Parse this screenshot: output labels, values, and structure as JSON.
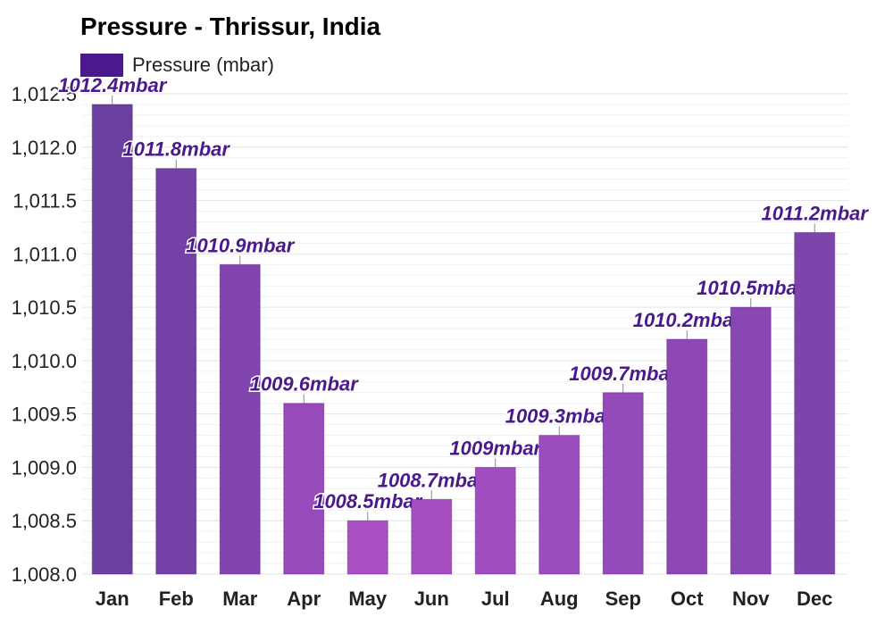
{
  "chart_data": {
    "type": "bar",
    "title": "Pressure - Thrissur, India",
    "legend": {
      "label": "Pressure (mbar)",
      "color": "#4a1a8c",
      "placement": "top-left"
    },
    "categories": [
      "Jan",
      "Feb",
      "Mar",
      "Apr",
      "May",
      "Jun",
      "Jul",
      "Aug",
      "Sep",
      "Oct",
      "Nov",
      "Dec"
    ],
    "values": [
      1012.4,
      1011.8,
      1010.9,
      1009.6,
      1008.5,
      1008.7,
      1009.0,
      1009.3,
      1009.7,
      1010.2,
      1010.5,
      1011.2
    ],
    "data_labels": [
      "1012.4mbar",
      "1011.8mbar",
      "1010.9mbar",
      "1009.6mbar",
      "1008.5mbar",
      "1008.7mbar",
      "1009mbar",
      "1009.3mbar",
      "1009.7mbar",
      "1010.2mbar",
      "1010.5mbar",
      "1011.2mbar"
    ],
    "ylim": [
      1008.0,
      1012.5
    ],
    "y_ticks": [
      1008.0,
      1008.5,
      1009.0,
      1009.5,
      1010.0,
      1010.5,
      1011.0,
      1011.5,
      1012.0,
      1012.5
    ],
    "y_tick_labels": [
      "1,008.0",
      "1,008.5",
      "1,009.0",
      "1,009.5",
      "1,010.0",
      "1,010.5",
      "1,011.0",
      "1,011.5",
      "1,012.0",
      "1,012.5"
    ],
    "xlabel": "",
    "ylabel": "",
    "grid": true,
    "colors": {
      "high": "#6a3fa0",
      "low": "#a84fc4",
      "label": "#4a1a8c",
      "grid": "#e6e6e6"
    }
  }
}
